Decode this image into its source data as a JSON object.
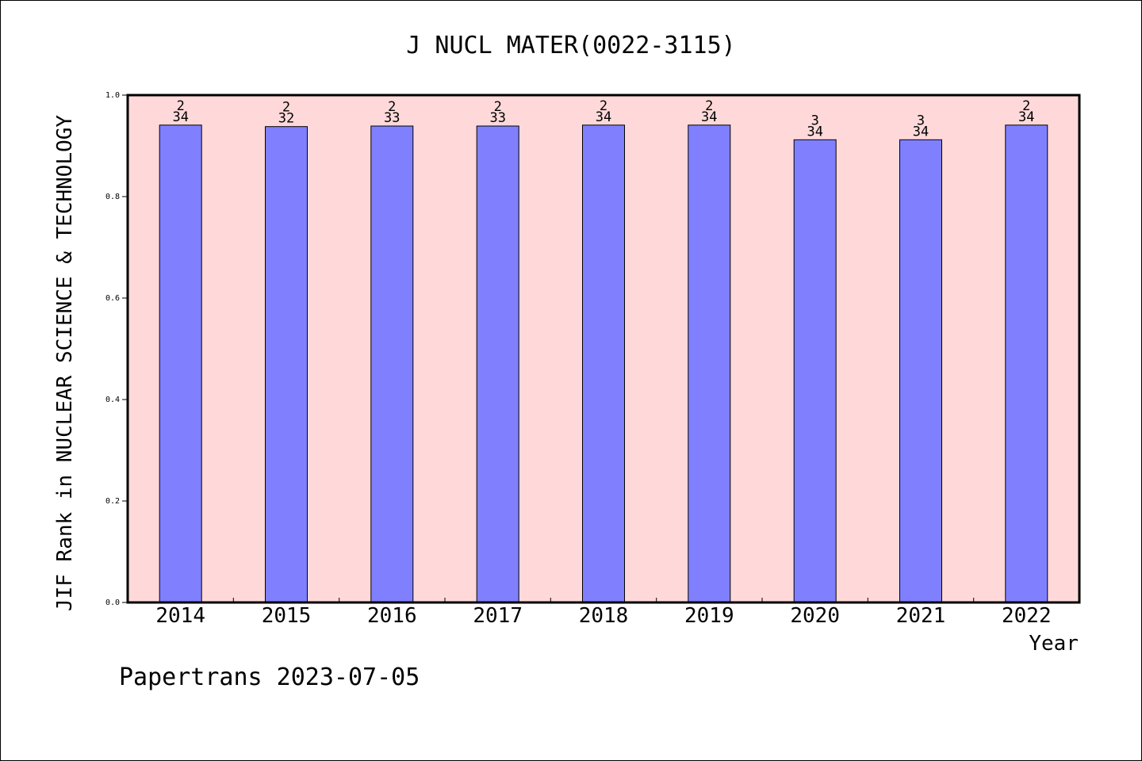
{
  "chart_data": {
    "type": "bar",
    "title": "J NUCL MATER(0022-3115)",
    "xlabel": "Year",
    "ylabel": "JIF Rank in NUCLEAR SCIENCE & TECHNOLOGY",
    "categories": [
      "2014",
      "2015",
      "2016",
      "2017",
      "2018",
      "2019",
      "2020",
      "2021",
      "2022"
    ],
    "values": [
      0.941,
      0.938,
      0.939,
      0.939,
      0.941,
      0.941,
      0.912,
      0.912,
      0.941
    ],
    "rank_labels": [
      {
        "rank": "2",
        "total": "34"
      },
      {
        "rank": "2",
        "total": "32"
      },
      {
        "rank": "2",
        "total": "33"
      },
      {
        "rank": "2",
        "total": "33"
      },
      {
        "rank": "2",
        "total": "34"
      },
      {
        "rank": "2",
        "total": "34"
      },
      {
        "rank": "3",
        "total": "34"
      },
      {
        "rank": "3",
        "total": "34"
      },
      {
        "rank": "2",
        "total": "34"
      }
    ],
    "ylim": [
      0,
      1.0
    ],
    "yticks": [
      "0.0",
      "0.2",
      "0.4",
      "0.6",
      "0.8",
      "1.0"
    ],
    "grid": false,
    "colors": {
      "bar": "#8080ff",
      "plot_background": "#ffd9d9"
    }
  },
  "footer": {
    "watermark": "Papertrans 2023-07-05"
  }
}
